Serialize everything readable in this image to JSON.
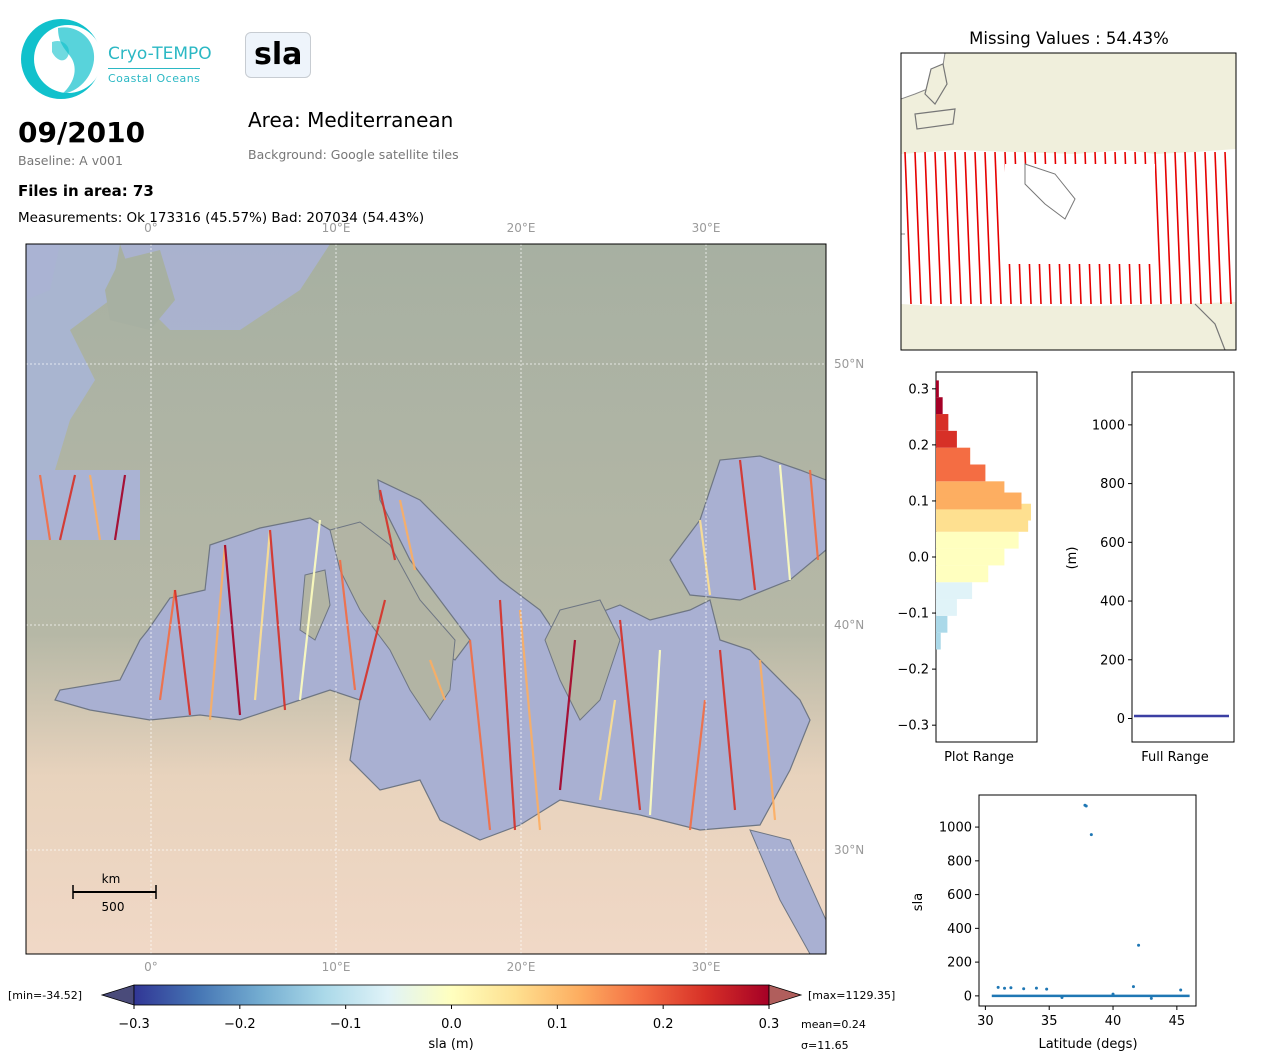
{
  "logo": {
    "line1": "Cryo-TEMPO",
    "line2": "Coastal Oceans"
  },
  "parameter": "sla",
  "date": "09/2010",
  "baseline": "Baseline: A v001",
  "area": "Area: Mediterranean",
  "background": "Background: Google satellite tiles",
  "files_in_area": "Files in area: 73",
  "measurements": "Measurements: Ok 173316 (45.57%) Bad: 207034 (54.43%)",
  "map": {
    "lon_ticks": [
      "0°",
      "10°E",
      "20°E",
      "30°E"
    ],
    "lat_ticks": [
      "50°N",
      "40°N",
      "30°N"
    ],
    "scalebar_unit": "km",
    "scalebar_value": "500"
  },
  "colorbar": {
    "min_label": "[min=-34.52]",
    "max_label": "[max=1129.35]",
    "ticks": [
      "−0.3",
      "−0.2",
      "−0.1",
      "0.0",
      "0.1",
      "0.2",
      "0.3"
    ],
    "label": "sla (m)",
    "mean": "mean=0.24",
    "sigma": "σ=11.65",
    "colors": [
      "#313695",
      "#4575b4",
      "#74add1",
      "#abd9e9",
      "#e0f3f8",
      "#ffffbf",
      "#fee090",
      "#fdae61",
      "#f46d43",
      "#d73027",
      "#a50026"
    ]
  },
  "missing_values_title": "Missing Values : 54.43%",
  "chart_data": [
    {
      "type": "bar",
      "name": "histogram-plot-range",
      "xlabel": "Plot Range",
      "ylim": [
        -0.33,
        0.33
      ],
      "yticks": [
        "0.3",
        "0.2",
        "0.1",
        "0.0",
        "−0.1",
        "−0.2",
        "−0.3"
      ],
      "bins_center": [
        -0.15,
        -0.12,
        -0.09,
        -0.06,
        -0.03,
        0.0,
        0.03,
        0.06,
        0.08,
        0.1,
        0.12,
        0.15,
        0.18,
        0.21,
        0.24,
        0.27,
        0.3
      ],
      "relative_counts": [
        0.05,
        0.12,
        0.22,
        0.38,
        0.55,
        0.72,
        0.87,
        0.97,
        1.0,
        0.9,
        0.72,
        0.52,
        0.36,
        0.22,
        0.13,
        0.07,
        0.03
      ]
    },
    {
      "type": "bar",
      "name": "histogram-full-range",
      "xlabel": "Full Range",
      "ylabel": "(m)",
      "ylim": [
        -80,
        1180
      ],
      "yticks": [
        "0",
        "200",
        "400",
        "600",
        "800",
        "1000"
      ]
    },
    {
      "type": "scatter",
      "name": "sla-vs-latitude",
      "xlabel": "Latitude (degs)",
      "ylabel": "sla",
      "xlim": [
        29.5,
        46.5
      ],
      "ylim": [
        -60,
        1190
      ],
      "xticks": [
        "30",
        "35",
        "40",
        "45"
      ],
      "yticks": [
        "0",
        "200",
        "400",
        "600",
        "800",
        "1000"
      ],
      "points": [
        [
          37.8,
          1129
        ],
        [
          37.9,
          1125
        ],
        [
          38.3,
          955
        ],
        [
          42.0,
          300
        ],
        [
          31.0,
          50
        ],
        [
          31.5,
          45
        ],
        [
          32.0,
          48
        ],
        [
          33.0,
          42
        ],
        [
          34.0,
          46
        ],
        [
          34.8,
          40
        ],
        [
          41.6,
          55
        ],
        [
          45.3,
          35
        ],
        [
          36.0,
          -10
        ],
        [
          40.0,
          10
        ],
        [
          43.0,
          -15
        ]
      ],
      "band": {
        "x": [
          30.5,
          46.0
        ],
        "y": 0
      }
    }
  ]
}
